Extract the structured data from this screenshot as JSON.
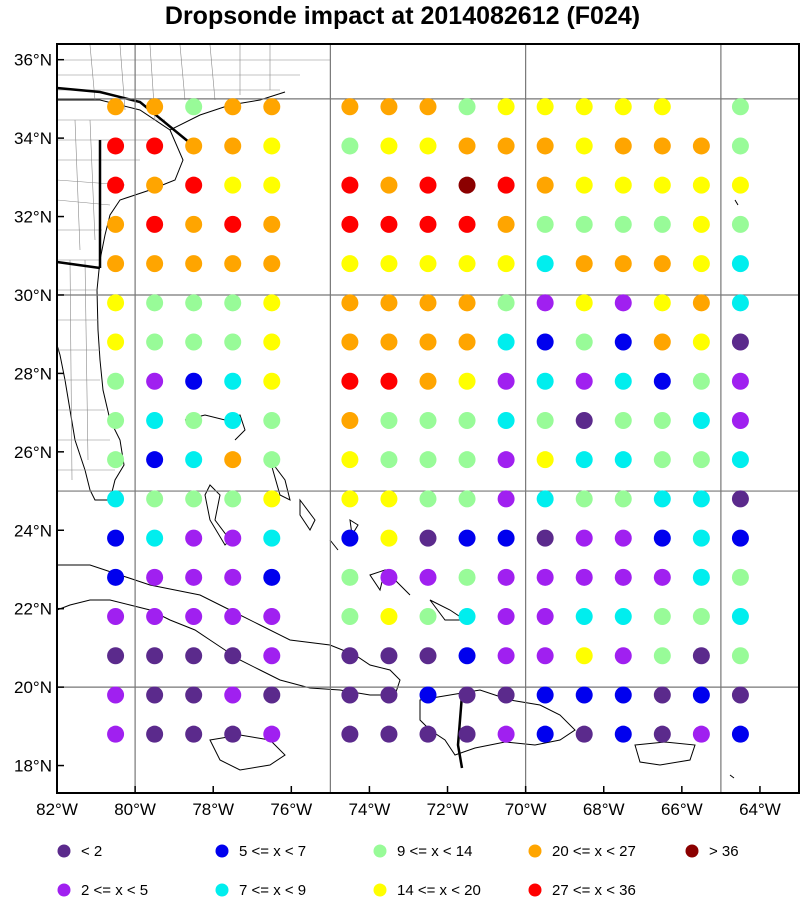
{
  "title": "Dropsonde impact at 2014082612 (F024)",
  "map": {
    "lon_range": [
      -82,
      -63
    ],
    "lat_range": [
      17.3,
      36.4
    ],
    "lon_ticks": [
      "82°W",
      "80°W",
      "78°W",
      "76°W",
      "74°W",
      "72°W",
      "70°W",
      "68°W",
      "66°W",
      "64°W"
    ],
    "lat_ticks": [
      "18°N",
      "20°N",
      "22°N",
      "24°N",
      "26°N",
      "28°N",
      "30°N",
      "32°N",
      "34°N",
      "36°N"
    ],
    "grid_lons": [
      -80,
      -75,
      -70,
      -65
    ],
    "grid_lats": [
      20,
      25,
      30,
      35
    ],
    "grid_lon_points": [
      -80.5,
      -79.5,
      -78.5,
      -77.5,
      -76.5,
      -75.5,
      -74.5,
      -73.5,
      -72.5,
      -71.5,
      -70.5,
      -69.5,
      -68.5,
      -67.5,
      -66.5,
      -65.5,
      -64.5
    ],
    "grid_lat_points": [
      34.8,
      33.8,
      32.8,
      31.8,
      30.8,
      29.8,
      28.8,
      27.8,
      26.8,
      25.8,
      24.8,
      23.8,
      22.8,
      21.8,
      20.8,
      19.8,
      18.8
    ]
  },
  "chart_data": {
    "type": "scatter",
    "title": "Dropsonde impact at 2014082612 (F024)",
    "xlabel": "",
    "ylabel": "",
    "category_colors": [
      "#5b2a8c",
      "#a020f0",
      "#0000ee",
      "#00eeee",
      "#98fb98",
      "#ffff00",
      "#ffa500",
      "#ff0000",
      "#8b0000"
    ],
    "legend": [
      {
        "label": "<  2",
        "color": "#5b2a8c"
      },
      {
        "label": "5 <= x <  7",
        "color": "#0000ee"
      },
      {
        "label": "9 <= x < 14",
        "color": "#98fb98"
      },
      {
        "label": "20 <= x < 27",
        "color": "#ffa500"
      },
      {
        "label": "> 36",
        "color": "#8b0000"
      },
      {
        "label": "2 <= x <  5",
        "color": "#a020f0"
      },
      {
        "label": "7 <= x <  9",
        "color": "#00eeee"
      },
      {
        "label": "14 <= x < 20",
        "color": "#ffff00"
      },
      {
        "label": "27 <= x < 36",
        "color": "#ff0000"
      }
    ],
    "rows": [
      "66466 666455555 4",
      "77665 45566656664",
      "76755 76787655555",
      "67676 77776444454",
      "66666 55555366653",
      "54445 66664151563",
      "54445 66663242650",
      "41235 77651313241",
      "43434 64443404431",
      "42364 54441533443",
      "34445 55441344330",
      "23113 25022011232",
      "21112 41141111134",
      "11111 45431133443",
      "00001 00021151404",
      "10010 00200222020",
      "10001 00001202012"
    ]
  }
}
